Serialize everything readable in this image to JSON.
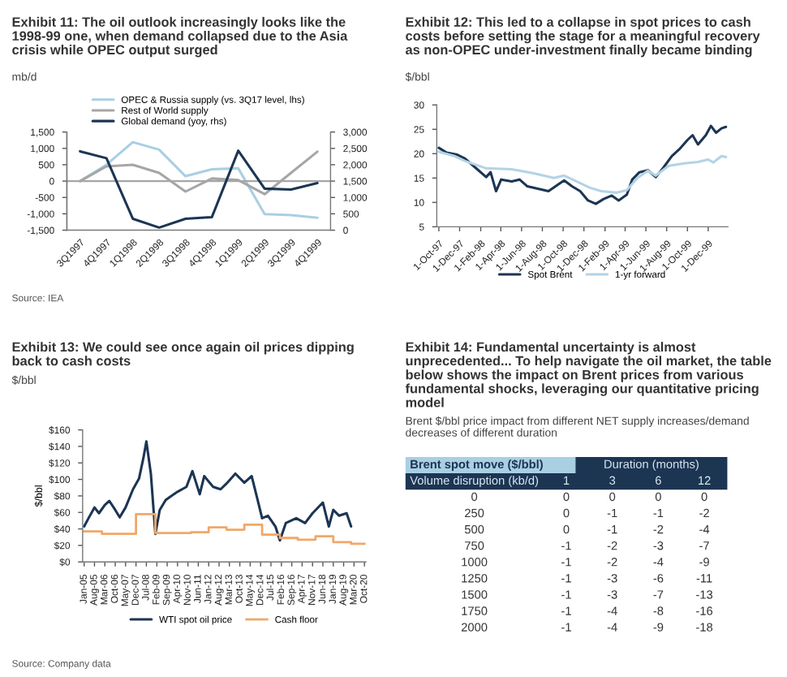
{
  "chart_data": [
    {
      "type": "line",
      "title": "Exhibit 11: The oil outlook increasingly looks like the 1998-99 one, when demand collapsed due to the Asia crisis while OPEC output surged",
      "subtitle": "mb/d",
      "categories": [
        "3Q1997",
        "4Q1997",
        "1Q1998",
        "2Q1998",
        "3Q1998",
        "4Q1998",
        "1Q1999",
        "2Q1999",
        "3Q1999",
        "4Q1999"
      ],
      "series": [
        {
          "name": "OPEC & Russia supply (vs. 3Q17 level, lhs)",
          "color": "#a9cfe3",
          "values": [
            0,
            500,
            1190,
            960,
            150,
            360,
            390,
            -1010,
            -1040,
            -1120
          ]
        },
        {
          "name": "Rest of World supply",
          "color": "#a6a6a6",
          "values": [
            0,
            450,
            500,
            250,
            -320,
            80,
            30,
            -400,
            250,
            900
          ]
        },
        {
          "name": "Global demand (yoy, rhs)",
          "color": "#1c3553",
          "axis": "y2",
          "values": [
            2410,
            2200,
            350,
            80,
            350,
            400,
            2430,
            1270,
            1240,
            1440
          ]
        }
      ],
      "ylim": [
        -1500,
        1500
      ],
      "yticks": [
        {
          "value": -1500,
          "label": "-1,500"
        },
        {
          "value": -1000,
          "label": "-1,000"
        },
        -500,
        0,
        500,
        {
          "value": 1000,
          "label": "1,000"
        },
        {
          "value": 1500,
          "label": "1,500"
        }
      ],
      "y2lim": [
        0,
        3000
      ],
      "y2ticks": [
        0,
        500,
        {
          "value": 1000,
          "label": "1,000"
        },
        {
          "value": 1500,
          "label": "1,500"
        },
        {
          "value": 2000,
          "label": "2,000"
        },
        {
          "value": 2500,
          "label": "2,500"
        },
        {
          "value": 3000,
          "label": "3,000"
        }
      ],
      "ref_lines": [
        {
          "axis": "y",
          "value": 0,
          "color": "#a6a6a6"
        }
      ],
      "legend": "top",
      "grid": false,
      "annotations": [
        "Source: IEA"
      ]
    },
    {
      "type": "line",
      "title": "Exhibit 12: This led to a collapse in spot prices to cash costs before setting the stage for a meaningful recovery as non-OPEC under-investment finally became binding",
      "subtitle": "$/bbl",
      "series": [
        {
          "name": "Spot Brent",
          "color": "#1c3553",
          "x": [
            "1997-10-01",
            "1997-10-24",
            "1997-11-24",
            "1997-12-17",
            "1998-01-17",
            "1998-02-17",
            "1998-03-02",
            "1998-03-18",
            "1998-04-02",
            "1998-05-03",
            "1998-05-26",
            "1998-06-18",
            "1998-07-19",
            "1998-08-19",
            "1998-09-19",
            "1998-10-04",
            "1998-10-27",
            "1998-11-20",
            "1998-12-13",
            "1999-01-05",
            "1999-01-28",
            "1999-02-21",
            "1999-03-13",
            "1999-04-06",
            "1999-04-22",
            "1999-05-13",
            "1999-06-07",
            "1999-06-30",
            "1999-07-22",
            "1999-08-16",
            "1999-09-07",
            "1999-10-01",
            "1999-10-16",
            "1999-11-01",
            "1999-11-24",
            "1999-12-09",
            "1999-12-24",
            "2000-01-09",
            "2000-01-22"
          ],
          "values": [
            21.2,
            20.2,
            19.8,
            19.0,
            17.1,
            15.2,
            16.2,
            12.3,
            14.7,
            14.3,
            14.7,
            13.3,
            12.8,
            12.3,
            13.8,
            14.5,
            13.3,
            12.3,
            10.4,
            9.7,
            10.7,
            11.4,
            10.4,
            11.6,
            14.7,
            16.2,
            16.6,
            15.2,
            17.1,
            19.5,
            20.9,
            22.8,
            23.8,
            21.9,
            23.8,
            25.7,
            24.3,
            25.2,
            25.5
          ]
        },
        {
          "name": "1-yr forward",
          "color": "#b3d3e6",
          "x": [
            "1997-10-01",
            "1997-11-16",
            "1997-12-17",
            "1998-02-17",
            "1998-05-03",
            "1998-07-04",
            "1998-09-04",
            "1998-10-04",
            "1998-11-04",
            "1998-12-19",
            "1999-01-21",
            "1999-03-07",
            "1999-04-06",
            "1999-05-07",
            "1999-06-07",
            "1999-06-30",
            "1999-08-07",
            "1999-09-22",
            "1999-11-01",
            "1999-12-01",
            "1999-12-16",
            "2000-01-09",
            "2000-01-22"
          ],
          "values": [
            20.4,
            19.5,
            18.5,
            17.0,
            16.8,
            16.0,
            15.0,
            15.5,
            14.5,
            13.0,
            12.3,
            12.0,
            12.5,
            15.0,
            16.5,
            15.5,
            17.5,
            18.0,
            18.3,
            18.8,
            18.2,
            19.5,
            19.3
          ]
        }
      ],
      "xlim": [
        "1997-09-25",
        "2000-01-28"
      ],
      "xticks": [
        {
          "value": "1997-10-01",
          "label": "1-Oct-97"
        },
        {
          "value": "1997-12-01",
          "label": "1-Dec-97"
        },
        {
          "value": "1998-02-01",
          "label": "1-Feb-98"
        },
        {
          "value": "1998-04-01",
          "label": "1-Apr-98"
        },
        {
          "value": "1998-06-01",
          "label": "1-Jun-98"
        },
        {
          "value": "1998-08-01",
          "label": "1-Aug-98"
        },
        {
          "value": "1998-10-01",
          "label": "1-Oct-98"
        },
        {
          "value": "1998-12-01",
          "label": "1-Dec-98"
        },
        {
          "value": "1999-02-01",
          "label": "1-Feb-99"
        },
        {
          "value": "1999-04-01",
          "label": "1-Apr-99"
        },
        {
          "value": "1999-06-01",
          "label": "1-Jun-99"
        },
        {
          "value": "1999-08-01",
          "label": "1-Aug-99"
        },
        {
          "value": "1999-10-01",
          "label": "1-Oct-99"
        },
        {
          "value": "1999-12-01",
          "label": "1-Dec-99"
        }
      ],
      "ylim": [
        5,
        30
      ],
      "yticks": [
        5,
        10,
        15,
        20,
        25,
        30
      ],
      "legend": "bottom",
      "grid": false
    },
    {
      "type": "line",
      "title": "Exhibit 13: We could see once again oil prices dipping back to cash costs",
      "subtitle": "$/bbl",
      "ylabel": "$/bbl",
      "series": [
        {
          "name": "WTI spot oil price",
          "color": "#1c3553",
          "x": [
            "2005-01",
            "2005-04",
            "2005-08",
            "2005-11",
            "2006-03",
            "2006-06",
            "2006-10",
            "2007-01",
            "2007-05",
            "2007-10",
            "2008-02",
            "2008-05",
            "2008-07",
            "2008-10",
            "2009-01",
            "2009-04",
            "2009-08",
            "2009-11",
            "2010-04",
            "2010-10",
            "2011-02",
            "2011-07",
            "2011-10",
            "2012-04",
            "2012-09",
            "2013-01",
            "2013-07",
            "2014-01",
            "2014-06",
            "2014-10",
            "2015-01",
            "2015-05",
            "2015-10",
            "2016-01",
            "2016-05",
            "2016-12",
            "2017-06",
            "2017-11",
            "2018-06",
            "2018-10",
            "2019-01",
            "2019-05",
            "2019-10",
            "2020-01"
          ],
          "values": [
            43,
            53,
            66,
            59,
            69,
            74,
            63,
            54,
            66,
            88,
            101,
            126,
            146,
            107,
            34,
            63,
            75,
            79,
            85,
            91,
            110,
            82,
            104,
            91,
            88,
            95,
            107,
            96,
            104,
            75,
            53,
            56,
            43,
            26,
            47,
            53,
            47,
            59,
            72,
            43,
            63,
            56,
            59,
            43
          ]
        },
        {
          "name": "Cash floor",
          "type": "step",
          "color": "#f0a868",
          "x": [
            "2005-01",
            "2006-01",
            "2007-12",
            "2009-01",
            "2011-01",
            "2012-01",
            "2013-01",
            "2014-01",
            "2015-01",
            "2016-01",
            "2017-01",
            "2018-01",
            "2019-01",
            "2020-01",
            "2020-10"
          ],
          "values": [
            37,
            34,
            58,
            35,
            36,
            42,
            39,
            45,
            33,
            29,
            27,
            31,
            24,
            22,
            22
          ]
        }
      ],
      "xlim": [
        "2004-12",
        "2020-11"
      ],
      "xticks": [
        {
          "value": "2005-01",
          "label": "Jan-05"
        },
        {
          "value": "2005-08",
          "label": "Aug-05"
        },
        {
          "value": "2006-03",
          "label": "Mar-06"
        },
        {
          "value": "2006-10",
          "label": "Oct-06"
        },
        {
          "value": "2007-05",
          "label": "May-07"
        },
        {
          "value": "2007-12",
          "label": "Dec-07"
        },
        {
          "value": "2008-07",
          "label": "Jul-08"
        },
        {
          "value": "2009-02",
          "label": "Feb-09"
        },
        {
          "value": "2009-09",
          "label": "Sep-09"
        },
        {
          "value": "2010-04",
          "label": "Apr-10"
        },
        {
          "value": "2010-11",
          "label": "Nov-10"
        },
        {
          "value": "2011-06",
          "label": "Jun-11"
        },
        {
          "value": "2012-01",
          "label": "Jan-12"
        },
        {
          "value": "2012-08",
          "label": "Aug-12"
        },
        {
          "value": "2013-03",
          "label": "Mar-13"
        },
        {
          "value": "2013-10",
          "label": "Oct-13"
        },
        {
          "value": "2014-05",
          "label": "May-14"
        },
        {
          "value": "2014-12",
          "label": "Dec-14"
        },
        {
          "value": "2015-07",
          "label": "Jul-15"
        },
        {
          "value": "2016-02",
          "label": "Feb-16"
        },
        {
          "value": "2016-09",
          "label": "Sep-16"
        },
        {
          "value": "2017-04",
          "label": "Apr-17"
        },
        {
          "value": "2017-11",
          "label": "Nov-17"
        },
        {
          "value": "2018-06",
          "label": "Jun-18"
        },
        {
          "value": "2019-01",
          "label": "Jan-19"
        },
        {
          "value": "2019-08",
          "label": "Aug-19"
        },
        {
          "value": "2020-03",
          "label": "Mar-20"
        },
        {
          "value": "2020-10",
          "label": "Oct-20"
        }
      ],
      "ylim": [
        0,
        160
      ],
      "yticks": [
        {
          "value": 0,
          "label": "$0"
        },
        {
          "value": 20,
          "label": "$20"
        },
        {
          "value": 40,
          "label": "$40"
        },
        {
          "value": 60,
          "label": "$60"
        },
        {
          "value": 80,
          "label": "$80"
        },
        {
          "value": 100,
          "label": "$100"
        },
        {
          "value": 120,
          "label": "$120"
        },
        {
          "value": 140,
          "label": "$140"
        },
        {
          "value": 160,
          "label": "$160"
        }
      ],
      "legend": "bottom",
      "grid": false,
      "annotations": [
        "Source: Company data"
      ]
    },
    {
      "type": "heatmap",
      "title": "Exhibit 14: Fundamental uncertainty is almost unprecedented... To help navigate the oil market, the table below shows the impact on Brent prices from various fundamental shocks, leveraging our quantitative pricing model",
      "subtitle": "Brent $/bbl price impact from different NET supply increases/demand decreases of different duration",
      "xlabel": "Duration (months)",
      "ylabel": "Volume disruption (kb/d)",
      "categories": [
        "1",
        "3",
        "6",
        "12"
      ],
      "y_categories": [
        "0",
        "250",
        "500",
        "750",
        "1000",
        "1250",
        "1500",
        "1750",
        "2000"
      ],
      "cells": [
        [
          0,
          0,
          0,
          0
        ],
        [
          0,
          -1,
          -1,
          -2
        ],
        [
          0,
          -1,
          -2,
          -4
        ],
        [
          -1,
          -2,
          -3,
          -7
        ],
        [
          -1,
          -2,
          -4,
          -9
        ],
        [
          -1,
          -3,
          -6,
          -11
        ],
        [
          -1,
          -3,
          -7,
          -13
        ],
        [
          -1,
          -4,
          -8,
          -16
        ],
        [
          -1,
          -4,
          -9,
          -18
        ]
      ],
      "data_labels": true,
      "annotations": [
        "Brent spot move ($/bbl)"
      ]
    }
  ]
}
